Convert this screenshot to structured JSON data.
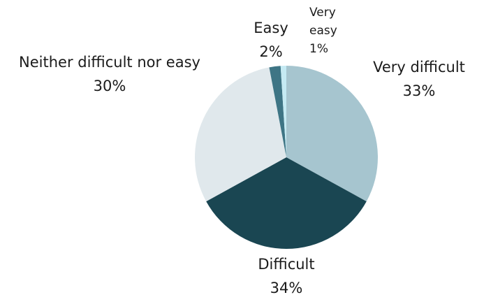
{
  "chart_data": {
    "type": "pie",
    "categories": [
      "Very difficult",
      "Difficult",
      "Neither difficult nor easy",
      "Easy",
      "Very easy"
    ],
    "values": [
      33,
      34,
      30,
      2,
      1
    ],
    "value_labels": [
      "33%",
      "34%",
      "30%",
      "2%",
      "1%"
    ],
    "colors": [
      "#a6c5cf",
      "#1a4652",
      "#e0e8ec",
      "#3e7585",
      "#c5eaf3"
    ]
  }
}
